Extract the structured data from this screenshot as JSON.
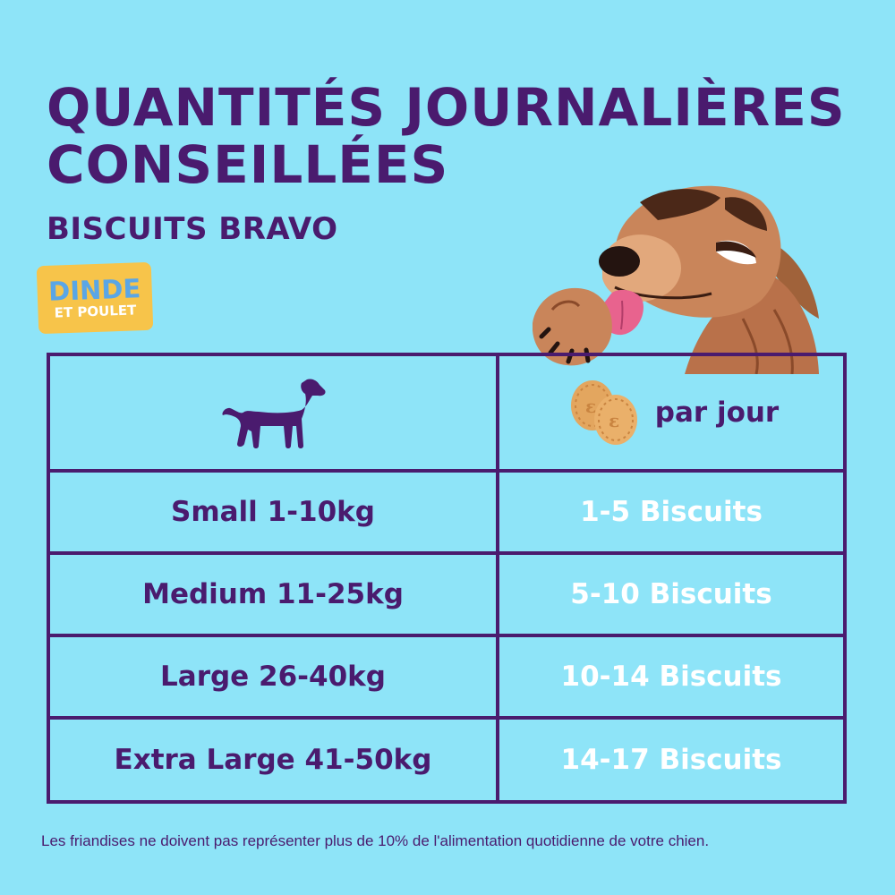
{
  "header": {
    "title_line1": "QUANTITÉS JOURNALIÈRES",
    "title_line2": "CONSEILLÉES",
    "subtitle": "BISCUITS BRAVO"
  },
  "badge": {
    "line1": "DINDE",
    "line2": "ET POULET",
    "color": "#f7c44a"
  },
  "table": {
    "header": {
      "left_icon": "dog-silhouette-icon",
      "right_icon": "biscuits-icon",
      "right_label": "par jour"
    },
    "rows": [
      {
        "size": "Small 1-10kg",
        "amount": "1-5 Biscuits"
      },
      {
        "size": "Medium 11-25kg",
        "amount": "5-10 Biscuits"
      },
      {
        "size": "Large 26-40kg",
        "amount": "10-14 Biscuits"
      },
      {
        "size": "Extra Large 41-50kg",
        "amount": "14-17 Biscuits"
      }
    ]
  },
  "footnote": "Les friandises ne doivent pas représenter plus de 10% de l'alimentation quotidienne de votre chien.",
  "colors": {
    "background": "#8ee4f8",
    "primary": "#4a1b6e",
    "accent": "#f7c44a",
    "value_text": "#ffffff"
  }
}
